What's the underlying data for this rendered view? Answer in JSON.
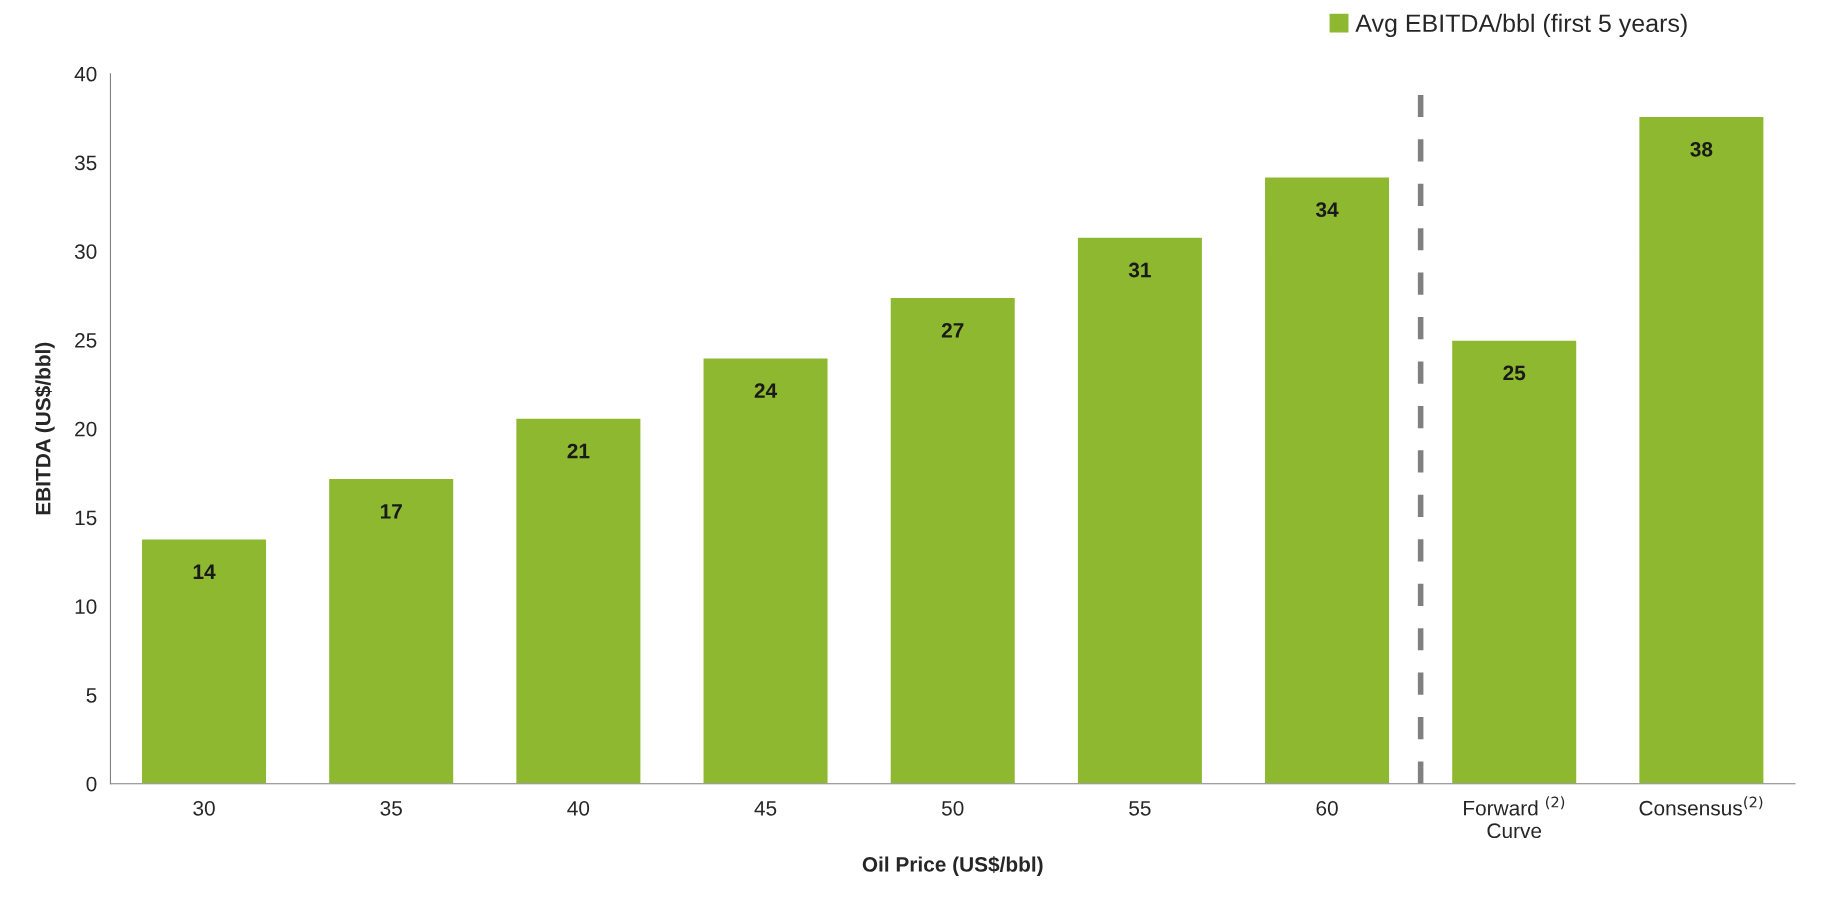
{
  "chart_data": {
    "type": "bar",
    "xlabel": "Oil Price (US$/bbl)",
    "ylabel": "EBITDA (US$/bbl)",
    "categories": [
      "30",
      "35",
      "40",
      "45",
      "50",
      "55",
      "60",
      "Forward $^{(2)}$\nCurve",
      "Consensus$^{(2)}$"
    ],
    "series": [
      {
        "name": "Avg EBITDA/bbl (first 5 years)",
        "color": "#8db82f",
        "values": [
          13.8,
          17.2,
          20.6,
          24.0,
          27.4,
          30.8,
          34.2,
          25.0,
          37.6
        ],
        "value_labels": [
          "14",
          "17",
          "21",
          "24",
          "27",
          "31",
          "34",
          "25",
          "38"
        ]
      }
    ],
    "ylim": [
      0,
      40
    ],
    "yticks": [
      0,
      5,
      10,
      15,
      20,
      25,
      30,
      35,
      40
    ],
    "grid": false,
    "legend": "top right"
  }
}
